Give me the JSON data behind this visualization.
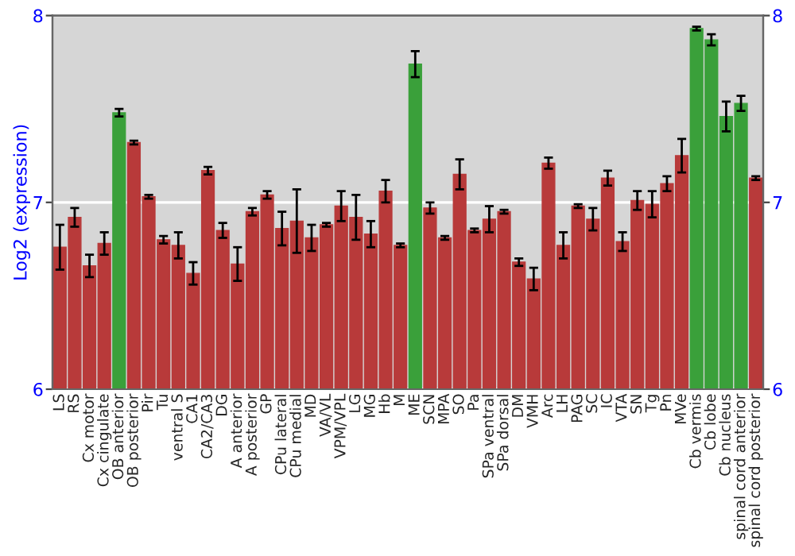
{
  "chart_data": {
    "type": "bar",
    "ylabel": "Log2 (expression)",
    "categories": [
      "LS",
      "RS",
      "Cx motor",
      "Cx cingulate",
      "OB anterior",
      "OB posterior",
      "Pir",
      "Tu",
      "ventral S",
      "CA1",
      "CA2/CA3",
      "DG",
      "A anterior",
      "A posterior",
      "GP",
      "CPu lateral",
      "CPu medial",
      "MD",
      "VA/VL",
      "VPM/VPL",
      "LG",
      "MG",
      "Hb",
      "M",
      "ME",
      "SCN",
      "MPA",
      "SO",
      "Pa",
      "SPa ventral",
      "SPa dorsal",
      "DM",
      "VMH",
      "Arc",
      "LH",
      "PAG",
      "SC",
      "IC",
      "VTA",
      "SN",
      "Tg",
      "Pn",
      "MVe",
      "Cb vermis",
      "Cb lobe",
      "Cb nucleus",
      "spinal cord anterior",
      "spinal cord posterior"
    ],
    "values": [
      6.76,
      6.92,
      6.66,
      6.78,
      7.48,
      7.32,
      7.03,
      6.8,
      6.77,
      6.62,
      7.17,
      6.85,
      6.67,
      6.95,
      7.04,
      6.86,
      6.9,
      6.81,
      6.88,
      6.98,
      6.92,
      6.83,
      7.06,
      6.77,
      7.74,
      6.97,
      6.81,
      7.15,
      6.85,
      6.91,
      6.95,
      6.68,
      6.59,
      7.21,
      6.77,
      6.98,
      6.91,
      7.13,
      6.79,
      7.01,
      6.99,
      7.1,
      7.25,
      7.93,
      7.87,
      7.46,
      7.53,
      7.13
    ],
    "errors": [
      0.12,
      0.05,
      0.06,
      0.06,
      0.02,
      0.01,
      0.01,
      0.02,
      0.07,
      0.06,
      0.02,
      0.04,
      0.09,
      0.02,
      0.02,
      0.09,
      0.17,
      0.07,
      0.01,
      0.08,
      0.12,
      0.07,
      0.06,
      0.01,
      0.07,
      0.03,
      0.01,
      0.08,
      0.01,
      0.07,
      0.01,
      0.02,
      0.06,
      0.03,
      0.07,
      0.01,
      0.06,
      0.04,
      0.05,
      0.05,
      0.07,
      0.04,
      0.09,
      0.01,
      0.03,
      0.08,
      0.04,
      0.01
    ],
    "colors": [
      "#b83a3a",
      "#b83a3a",
      "#b83a3a",
      "#b83a3a",
      "#3aa03a",
      "#b83a3a",
      "#b83a3a",
      "#b83a3a",
      "#b83a3a",
      "#b83a3a",
      "#b83a3a",
      "#b83a3a",
      "#b83a3a",
      "#b83a3a",
      "#b83a3a",
      "#b83a3a",
      "#b83a3a",
      "#b83a3a",
      "#b83a3a",
      "#b83a3a",
      "#b83a3a",
      "#b83a3a",
      "#b83a3a",
      "#b83a3a",
      "#3aa03a",
      "#b83a3a",
      "#b83a3a",
      "#b83a3a",
      "#b83a3a",
      "#b83a3a",
      "#b83a3a",
      "#b83a3a",
      "#b83a3a",
      "#b83a3a",
      "#b83a3a",
      "#b83a3a",
      "#b83a3a",
      "#b83a3a",
      "#b83a3a",
      "#b83a3a",
      "#b83a3a",
      "#b83a3a",
      "#b83a3a",
      "#3aa03a",
      "#3aa03a",
      "#3aa03a",
      "#3aa03a",
      "#b83a3a"
    ],
    "ylim": [
      6,
      8
    ],
    "yticks": [
      6,
      7,
      8
    ],
    "y2lim": [
      6,
      8
    ],
    "y2ticks": [
      6,
      7,
      8
    ],
    "grid": "y"
  }
}
